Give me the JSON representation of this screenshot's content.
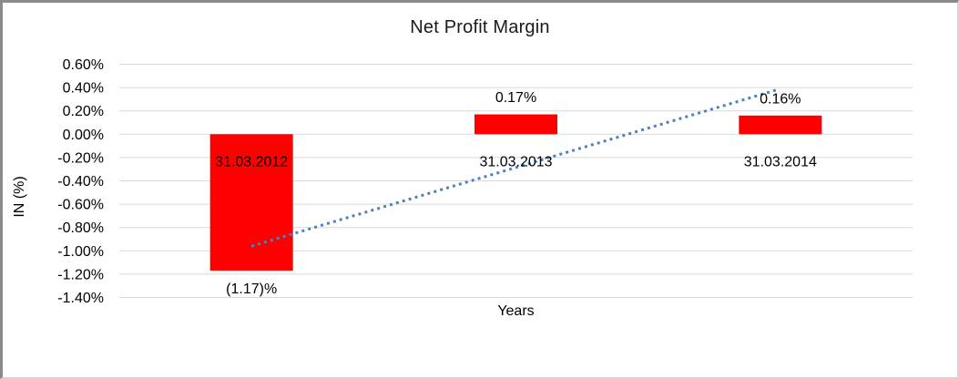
{
  "chart_data": {
    "type": "bar",
    "title": "Net Profit Margin",
    "xlabel": "Years",
    "ylabel": "IN (%)",
    "categories": [
      "31.03.2012",
      "31.03.2013",
      "31.03.2014"
    ],
    "values": [
      -1.17,
      0.17,
      0.16
    ],
    "value_labels": [
      "(1.17)%",
      "0.17%",
      "0.16%"
    ],
    "bar_color": "#ff0000",
    "ylim": [
      -1.4,
      0.6
    ],
    "yticks": [
      0.6,
      0.4,
      0.2,
      0.0,
      -0.2,
      -0.4,
      -0.6,
      -0.8,
      -1.0,
      -1.2,
      -1.4
    ],
    "ytick_labels": [
      "0.60%",
      "0.40%",
      "0.20%",
      "0.00%",
      "-0.20%",
      "-0.40%",
      "-0.60%",
      "-0.80%",
      "-1.00%",
      "-1.20%",
      "-1.40%"
    ],
    "grid": true,
    "gridline_color": "#d9d9d9",
    "legend": "none",
    "trendline": {
      "type": "linear",
      "style": "dotted",
      "color": "#4f81bd",
      "start_value": -0.96,
      "end_value": 0.38
    }
  }
}
